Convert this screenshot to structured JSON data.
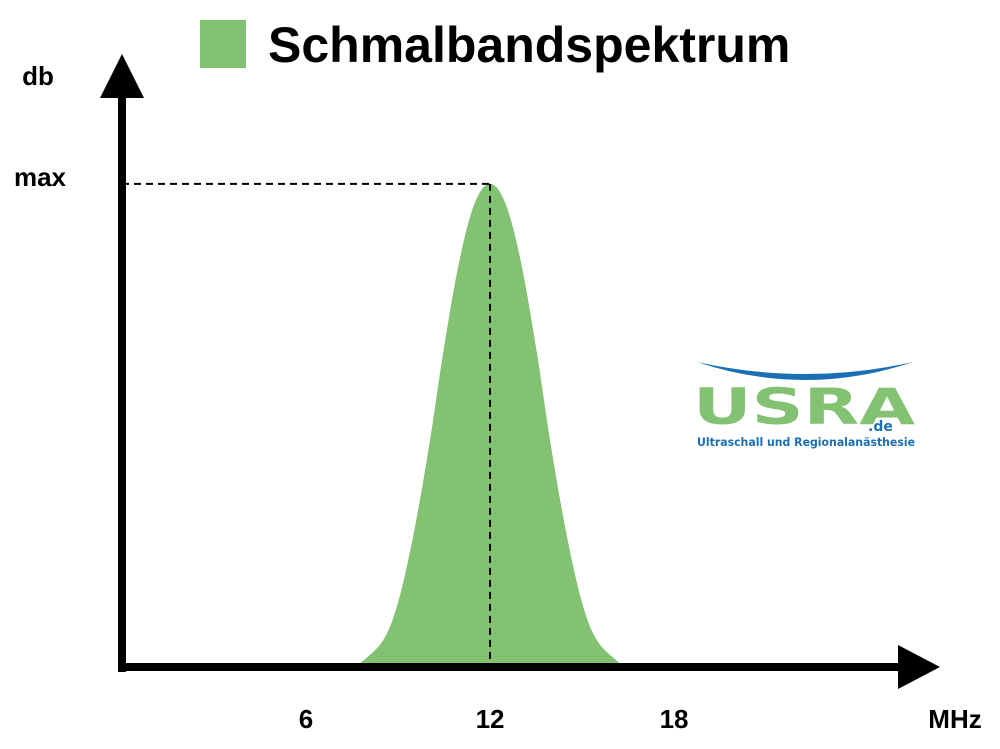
{
  "chart_data": {
    "type": "area",
    "title": "Schmalbandspektrum",
    "legend": {
      "placement": "top",
      "swatch_color": "#83c173"
    },
    "ylabel": "db",
    "xlabel": "MHz",
    "x_ticks": [
      {
        "value": 6,
        "label": "6"
      },
      {
        "value": 12,
        "label": "12"
      },
      {
        "value": 18,
        "label": "18"
      }
    ],
    "y_ticks": [
      {
        "value": 1,
        "label": "max"
      }
    ],
    "xlim": [
      0,
      25.4
    ],
    "ylim": [
      0,
      1.27
    ],
    "series": [
      {
        "fill_color": "#83c173",
        "x": [
          7.7,
          8.5,
          9.0,
          9.5,
          10.0,
          10.5,
          11.0,
          11.5,
          12.0,
          12.5,
          13.0,
          13.5,
          14.0,
          14.5,
          15.0,
          15.5,
          16.3
        ],
        "y": [
          0.0,
          0.05,
          0.13,
          0.27,
          0.45,
          0.66,
          0.84,
          0.96,
          1.0,
          0.96,
          0.84,
          0.66,
          0.45,
          0.27,
          0.13,
          0.05,
          0.0
        ]
      }
    ],
    "annotations": [
      {
        "type": "dashed-guide",
        "x": 12,
        "y": 1
      }
    ],
    "grid": false
  },
  "logo": {
    "word": "USRA",
    "tld": ".de",
    "tagline": "Ultraschall und Regionalanästhesie",
    "primary_color": "#83c173",
    "accent_color": "#1a6fb5"
  },
  "colors": {
    "axis": "#000000",
    "fill": "#83c173"
  }
}
